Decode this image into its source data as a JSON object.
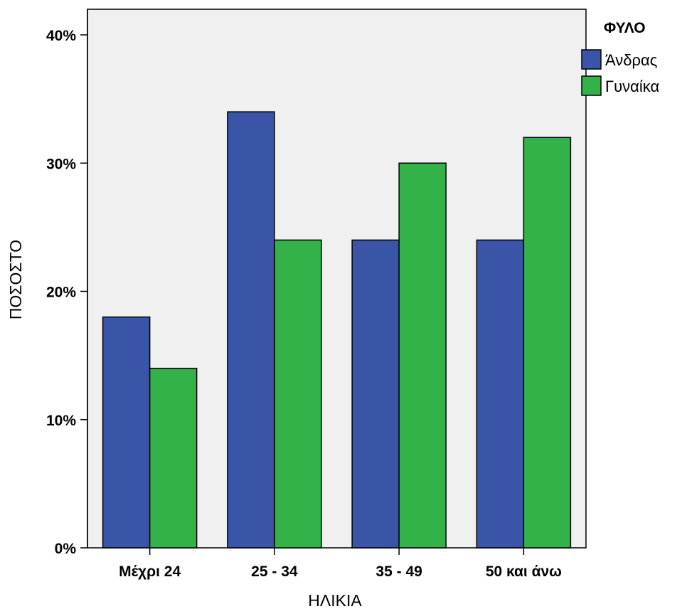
{
  "chart_data": {
    "type": "bar",
    "categories": [
      "Μέχρι 24",
      "25 - 34",
      "35 - 49",
      "50 και άνω"
    ],
    "series": [
      {
        "name": "Άνδρας",
        "values": [
          18,
          34,
          24,
          24
        ],
        "color": "#3a55a8"
      },
      {
        "name": "Γυναίκα",
        "values": [
          14,
          24,
          30,
          32
        ],
        "color": "#33b24a"
      }
    ],
    "xlabel": "ΗΛΙΚΙΑ",
    "ylabel": "ΠΟΣΟΣΤΟ",
    "ylim": [
      0,
      40
    ],
    "yticks": [
      "0%",
      "10%",
      "20%",
      "30%",
      "40%"
    ],
    "ytick_values": [
      0,
      10,
      20,
      30,
      40
    ],
    "legend_title": "ΦΥΛΟ",
    "legend_position": "top-right",
    "plot_background": "#f0f0f0",
    "grid": false
  }
}
